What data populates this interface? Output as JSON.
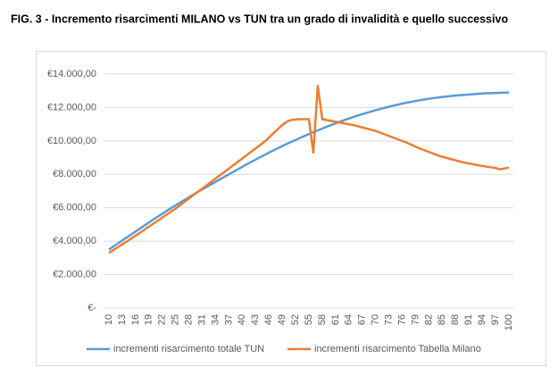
{
  "chart_data": {
    "type": "line",
    "title": "FIG. 3 - Incremento risarcimenti MILANO vs TUN tra un grado di invalidità e quello successivo",
    "x": [
      10,
      11,
      12,
      13,
      14,
      15,
      16,
      17,
      18,
      19,
      20,
      21,
      22,
      23,
      24,
      25,
      26,
      27,
      28,
      29,
      30,
      31,
      32,
      33,
      34,
      35,
      36,
      37,
      38,
      39,
      40,
      41,
      42,
      43,
      44,
      45,
      46,
      47,
      48,
      49,
      50,
      51,
      52,
      53,
      54,
      55,
      56,
      57,
      58,
      59,
      60,
      61,
      62,
      63,
      64,
      65,
      66,
      67,
      68,
      69,
      70,
      71,
      72,
      73,
      74,
      75,
      76,
      77,
      78,
      79,
      80,
      81,
      82,
      83,
      84,
      85,
      86,
      87,
      88,
      89,
      90,
      91,
      92,
      93,
      94,
      95,
      96,
      97,
      98,
      99,
      100
    ],
    "xlim": [
      10,
      100
    ],
    "xticks": [
      10,
      13,
      16,
      19,
      22,
      25,
      28,
      31,
      34,
      37,
      40,
      43,
      46,
      49,
      52,
      55,
      58,
      61,
      64,
      67,
      70,
      73,
      76,
      79,
      82,
      85,
      88,
      91,
      94,
      97,
      100
    ],
    "ylim": [
      0,
      14000
    ],
    "yticks": [
      {
        "value": 0,
        "label": "€-"
      },
      {
        "value": 2000,
        "label": "€2.000,00"
      },
      {
        "value": 4000,
        "label": "€4.000,00"
      },
      {
        "value": 6000,
        "label": "€6.000,00"
      },
      {
        "value": 8000,
        "label": "€8.000,00"
      },
      {
        "value": 10000,
        "label": "€10.000,00"
      },
      {
        "value": 12000,
        "label": "€12.000,00"
      },
      {
        "value": 14000,
        "label": "€14.000,00"
      }
    ],
    "grid": true,
    "legend": "bottom",
    "series": [
      {
        "name": "incrementi risarcimento totale TUN",
        "color": "#5b9bd5",
        "values": [
          3500,
          3680,
          3860,
          4040,
          4220,
          4400,
          4580,
          4760,
          4940,
          5120,
          5300,
          5470,
          5640,
          5810,
          5980,
          6150,
          6310,
          6470,
          6630,
          6790,
          6950,
          7100,
          7250,
          7400,
          7550,
          7700,
          7850,
          8000,
          8150,
          8300,
          8450,
          8600,
          8740,
          8880,
          9020,
          9160,
          9300,
          9430,
          9560,
          9690,
          9820,
          9940,
          10060,
          10180,
          10300,
          10410,
          10520,
          10630,
          10740,
          10850,
          10950,
          11050,
          11150,
          11250,
          11340,
          11430,
          11520,
          11600,
          11680,
          11760,
          11840,
          11910,
          11980,
          12050,
          12110,
          12170,
          12230,
          12290,
          12340,
          12390,
          12440,
          12480,
          12520,
          12560,
          12600,
          12630,
          12660,
          12690,
          12720,
          12740,
          12760,
          12780,
          12800,
          12820,
          12840,
          12850,
          12860,
          12870,
          12880,
          12890,
          12900
        ]
      },
      {
        "name": "incrementi risarcimento Tabella Milano",
        "color": "#ed7d31",
        "values": [
          3300,
          3470,
          3640,
          3810,
          3980,
          4150,
          4330,
          4510,
          4690,
          4870,
          5050,
          5230,
          5410,
          5590,
          5770,
          5950,
          6150,
          6350,
          6550,
          6750,
          6950,
          7150,
          7350,
          7550,
          7750,
          7950,
          8150,
          8350,
          8550,
          8750,
          8950,
          9150,
          9350,
          9550,
          9750,
          9950,
          10200,
          10450,
          10700,
          10950,
          11150,
          11250,
          11280,
          11300,
          11300,
          11300,
          9300,
          13300,
          11300,
          11250,
          11200,
          11150,
          11100,
          11050,
          11000,
          10950,
          10880,
          10810,
          10740,
          10670,
          10600,
          10500,
          10400,
          10300,
          10200,
          10100,
          10000,
          9900,
          9780,
          9660,
          9540,
          9440,
          9340,
          9240,
          9140,
          9050,
          8980,
          8910,
          8840,
          8770,
          8700,
          8650,
          8600,
          8550,
          8500,
          8460,
          8420,
          8380,
          8300,
          8350,
          8400
        ]
      }
    ]
  }
}
